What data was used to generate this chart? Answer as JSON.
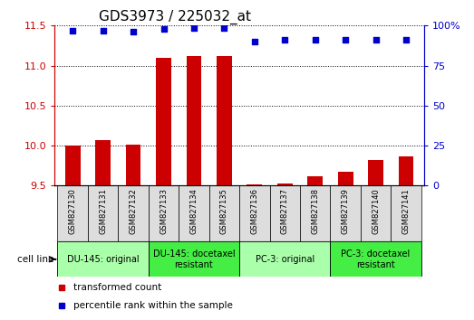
{
  "title": "GDS3973 / 225032_at",
  "samples": [
    "GSM827130",
    "GSM827131",
    "GSM827132",
    "GSM827133",
    "GSM827134",
    "GSM827135",
    "GSM827136",
    "GSM827137",
    "GSM827138",
    "GSM827139",
    "GSM827140",
    "GSM827141"
  ],
  "bar_values": [
    10.0,
    10.07,
    10.01,
    11.1,
    11.12,
    11.12,
    9.52,
    9.53,
    9.62,
    9.67,
    9.82,
    9.87
  ],
  "dot_values": [
    97,
    97,
    96.5,
    98,
    98.5,
    98.5,
    90,
    91,
    91,
    91,
    91,
    91
  ],
  "ylim": [
    9.5,
    11.5
  ],
  "yticks_left": [
    9.5,
    10.0,
    10.5,
    11.0,
    11.5
  ],
  "yticks_right": [
    0,
    25,
    50,
    75,
    100
  ],
  "bar_color": "#cc0000",
  "dot_color": "#0000cc",
  "groups": [
    {
      "label": "DU-145: original",
      "start": 0,
      "end": 3,
      "color": "#aaffaa"
    },
    {
      "label": "DU-145: docetaxel\nresistant",
      "start": 3,
      "end": 6,
      "color": "#44ee44"
    },
    {
      "label": "PC-3: original",
      "start": 6,
      "end": 9,
      "color": "#aaffaa"
    },
    {
      "label": "PC-3: docetaxel\nresistant",
      "start": 9,
      "end": 12,
      "color": "#44ee44"
    }
  ],
  "cell_line_label": "cell line",
  "legend_bar_label": "transformed count",
  "legend_dot_label": "percentile rank within the sample",
  "title_fontsize": 11,
  "tick_fontsize": 8,
  "label_fontsize": 7.5,
  "group_fontsize": 7,
  "bg_color": "#dddddd"
}
